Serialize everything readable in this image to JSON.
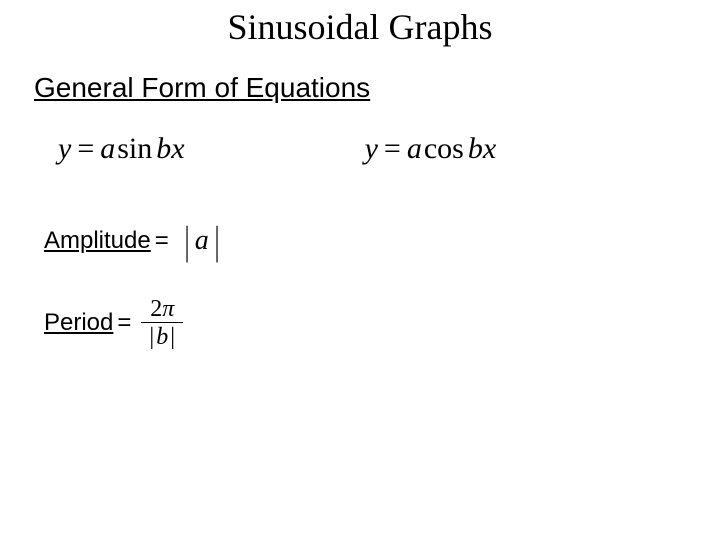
{
  "title": "Sinusoidal Graphs",
  "subtitle": "General Form of Equations",
  "equations": {
    "sin": {
      "y": "y",
      "eq": "=",
      "a": "a",
      "fn": "sin",
      "bx": "bx"
    },
    "cos": {
      "y": "y",
      "eq": "=",
      "a": "a",
      "fn": "cos",
      "bx": "bx"
    }
  },
  "amplitude": {
    "label": "Amplitude",
    "eq": "=",
    "value": "a"
  },
  "period": {
    "label": "Period",
    "eq": "=",
    "numerator": {
      "two": "2",
      "pi": "π"
    },
    "denominator": {
      "b": "b"
    }
  },
  "colors": {
    "text": "#000000",
    "background": "#ffffff"
  },
  "fonts": {
    "title": {
      "family": "Times New Roman",
      "size_pt": 27
    },
    "subtitle": {
      "family": "Arial",
      "size_pt": 21
    },
    "equation": {
      "family": "Times New Roman",
      "size_pt": 22,
      "style": "italic"
    },
    "label": {
      "family": "Arial",
      "size_pt": 18
    }
  }
}
